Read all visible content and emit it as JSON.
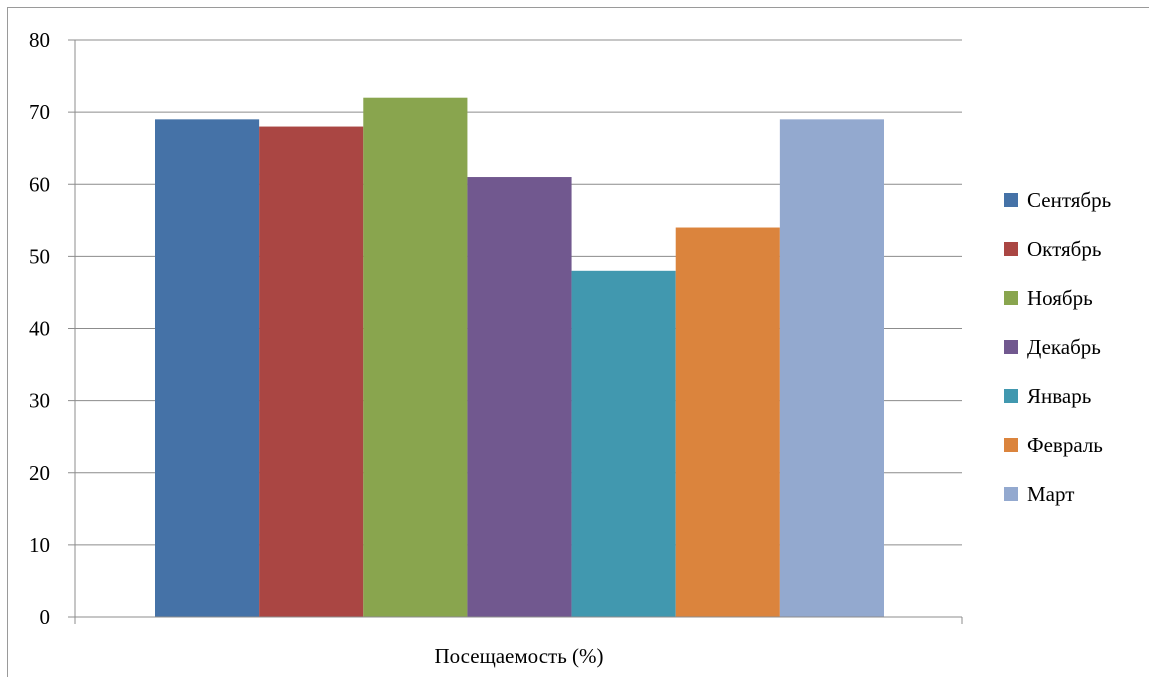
{
  "chart_data": {
    "type": "bar",
    "xlabel": "Посещаемость (%)",
    "ylabel": "",
    "ylim": [
      0,
      80
    ],
    "yticks": [
      0,
      10,
      20,
      30,
      40,
      50,
      60,
      70,
      80
    ],
    "grid": true,
    "legend_position": "right",
    "series": [
      {
        "name": "Сентябрь",
        "value": 69,
        "color": "#4572A7"
      },
      {
        "name": "Октябрь",
        "value": 68,
        "color": "#AA4643"
      },
      {
        "name": "Ноябрь",
        "value": 72,
        "color": "#89A54E"
      },
      {
        "name": "Декабрь",
        "value": 61,
        "color": "#71588F"
      },
      {
        "name": "Январь",
        "value": 48,
        "color": "#4198AF"
      },
      {
        "name": "Февраль",
        "value": 54,
        "color": "#DB843D"
      },
      {
        "name": "Март",
        "value": 69,
        "color": "#93A9CF"
      }
    ]
  }
}
